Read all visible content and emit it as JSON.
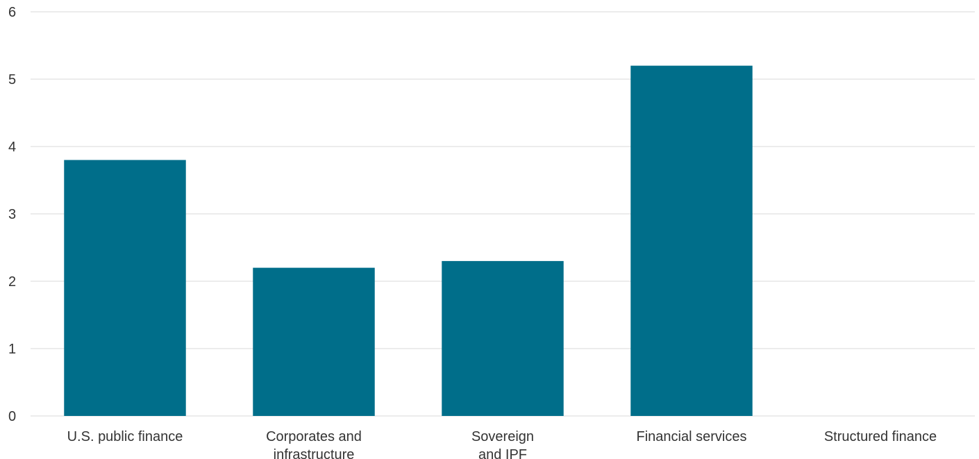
{
  "chart_data": {
    "type": "bar",
    "title": "",
    "xlabel": "",
    "ylabel": "",
    "categories": [
      [
        "U.S. public finance"
      ],
      [
        "Corporates and",
        "infrastructure"
      ],
      [
        "Sovereign",
        "and IPF"
      ],
      [
        "Financial services"
      ],
      [
        "Structured finance"
      ]
    ],
    "values": [
      3.8,
      2.2,
      2.3,
      5.2,
      0
    ],
    "ylim": [
      0,
      6
    ],
    "yticks": [
      "0",
      "1",
      "2",
      "3",
      "4",
      "5",
      "6"
    ],
    "grid": true,
    "legend": "none",
    "colors": {
      "bar": "#006E8A",
      "grid": "#D9D9D9",
      "text": "#333333"
    }
  }
}
